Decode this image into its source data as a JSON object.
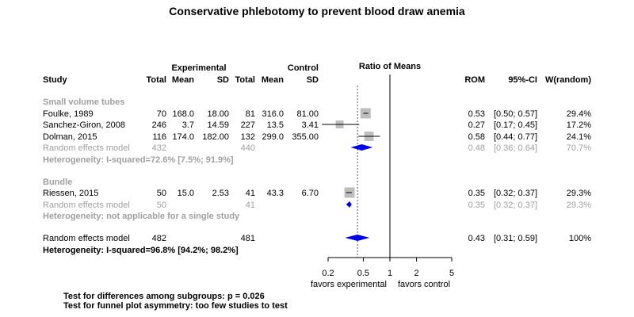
{
  "chart_data": {
    "type": "forest",
    "title": "Conservative phlebotomy to prevent blood draw anemia",
    "header": {
      "group_experimental": "Experimental",
      "group_control": "Control",
      "plot_title": "Ratio of Means",
      "study": "Study",
      "total_e": "Total",
      "mean_e": "Mean",
      "sd_e": "SD",
      "total_c": "Total",
      "mean_c": "Mean",
      "sd_c": "SD",
      "rom": "ROM",
      "ci": "95%-CI",
      "weight": "W(random)"
    },
    "subgroups": [
      {
        "label": "Small volume tubes",
        "studies": [
          {
            "name": "Foulke, 1989",
            "total_e": "70",
            "mean_e": "168.0",
            "sd_e": "18.00",
            "total_c": "81",
            "mean_c": "316.0",
            "sd_c": "81.00",
            "rom": 0.53,
            "lo": 0.5,
            "hi": 0.57,
            "rom_text": "0.53",
            "ci_text": "[0.50; 0.57]",
            "weight_text": "29.4%",
            "weight": 29.4
          },
          {
            "name": "Sanchez-Giron, 2008",
            "total_e": "246",
            "mean_e": "3.7",
            "sd_e": "14.59",
            "total_c": "227",
            "mean_c": "13.5",
            "sd_c": "3.41",
            "rom": 0.27,
            "lo": 0.17,
            "hi": 0.45,
            "rom_text": "0.27",
            "ci_text": "[0.17; 0.45]",
            "weight_text": "17.2%",
            "weight": 17.2
          },
          {
            "name": "Dolman, 2015",
            "total_e": "116",
            "mean_e": "174.0",
            "sd_e": "182.00",
            "total_c": "132",
            "mean_c": "299.0",
            "sd_c": "355.00",
            "rom": 0.58,
            "lo": 0.44,
            "hi": 0.77,
            "rom_text": "0.58",
            "ci_text": "[0.44; 0.77]",
            "weight_text": "24.1%",
            "weight": 24.1
          }
        ],
        "pooled": {
          "name": "Random effects model",
          "total_e": "432",
          "total_c": "440",
          "rom": 0.48,
          "lo": 0.36,
          "hi": 0.64,
          "rom_text": "0.48",
          "ci_text": "[0.36; 0.64]",
          "weight_text": "70.7%"
        },
        "heterogeneity": "Heterogeneity: I-squared=72.6% [7.5%; 91.9%]"
      },
      {
        "label": "Bundle",
        "studies": [
          {
            "name": "Riessen, 2015",
            "total_e": "50",
            "mean_e": "15.0",
            "sd_e": "2.53",
            "total_c": "41",
            "mean_c": "43.3",
            "sd_c": "6.70",
            "rom": 0.35,
            "lo": 0.32,
            "hi": 0.37,
            "rom_text": "0.35",
            "ci_text": "[0.32; 0.37]",
            "weight_text": "29.3%",
            "weight": 29.3
          }
        ],
        "pooled": {
          "name": "Random effects model",
          "total_e": "50",
          "total_c": "41",
          "rom": 0.35,
          "lo": 0.32,
          "hi": 0.37,
          "rom_text": "0.35",
          "ci_text": "[0.32; 0.37]",
          "weight_text": "29.3%"
        },
        "heterogeneity": "Heterogeneity: not applicable for a single study"
      }
    ],
    "overall": {
      "name": "Random effects model",
      "total_e": "482",
      "total_c": "481",
      "rom": 0.43,
      "lo": 0.31,
      "hi": 0.59,
      "rom_text": "0.43",
      "ci_text": "[0.31; 0.59]",
      "weight_text": "100%",
      "heterogeneity": "Heterogeneity: I-squared=96.8% [94.2%; 98.2%]"
    },
    "x_axis": {
      "scale": "log",
      "ticks": [
        0.2,
        0.5,
        1,
        2,
        5
      ],
      "tick_labels": [
        "0.2",
        "0.5",
        "1",
        "2",
        "5"
      ],
      "range": [
        0.2,
        5
      ],
      "null_value": 1,
      "label_left": "favors experimental",
      "label_right": "favors control"
    },
    "footer": [
      "Test for differences among subgroups: p = 0.026",
      "Test for funnel plot asymmetry: too few studies to test"
    ],
    "colors": {
      "study_square": "#bdbdbd",
      "diamond": "#0000ee",
      "subgroup_text": "#a0a0a0",
      "line": "#000000"
    }
  }
}
